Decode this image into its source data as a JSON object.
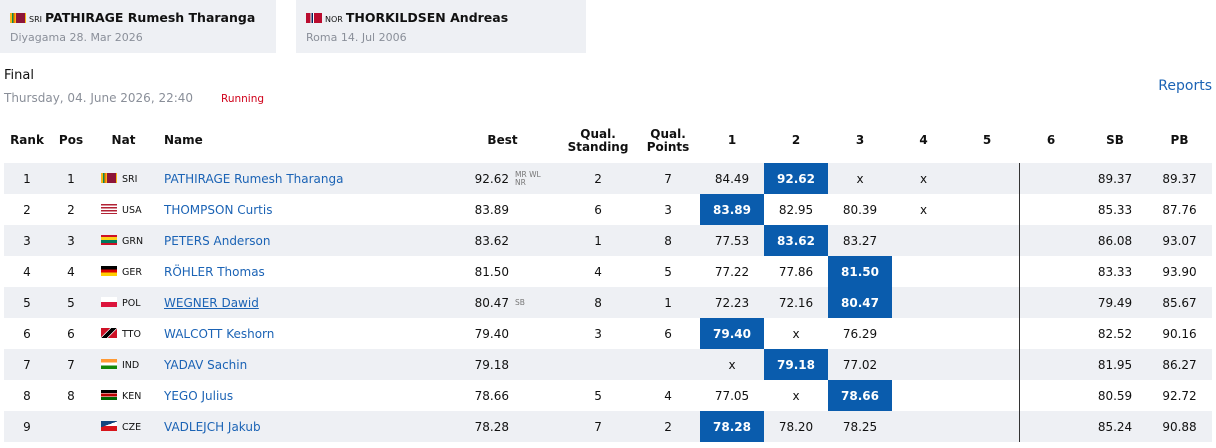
{
  "cards": [
    {
      "nat": "SRI",
      "name": "PATHIRAGE Rumesh Tharanga",
      "detail": "Diyagama 28. Mar 2026"
    },
    {
      "nat": "NOR",
      "name": "THORKILDSEN Andreas",
      "detail": "Roma 14. Jul 2006"
    }
  ],
  "header": {
    "title": "Final",
    "datetime": "Thursday, 04. June 2026, 22:40",
    "status": "Running",
    "link": "Reports"
  },
  "table": {
    "columns": [
      "Rank",
      "Pos",
      "Nat",
      "Name",
      "Best",
      "Qual. Standing",
      "Qual. Points",
      "1",
      "2",
      "3",
      "4",
      "5",
      "6",
      "SB",
      "PB"
    ],
    "rows": [
      {
        "rank": "1",
        "pos": "1",
        "nat": "SRI",
        "name": "PATHIRAGE Rumesh Tharanga",
        "best": "92.62",
        "marks": [
          "MR WL",
          "NR"
        ],
        "qual_standing": "2",
        "qual_points": "7",
        "attempts": [
          "84.49",
          "92.62",
          "x",
          "x",
          null,
          null
        ],
        "highlight": 1,
        "sb": "89.37",
        "pb": "89.37"
      },
      {
        "rank": "2",
        "pos": "2",
        "nat": "USA",
        "name": "THOMPSON Curtis",
        "best": "83.89",
        "marks": null,
        "qual_standing": "6",
        "qual_points": "3",
        "attempts": [
          "83.89",
          "82.95",
          "80.39",
          "x",
          null,
          null
        ],
        "highlight": 0,
        "sb": "85.33",
        "pb": "87.76"
      },
      {
        "rank": "3",
        "pos": "3",
        "nat": "GRN",
        "name": "PETERS Anderson",
        "best": "83.62",
        "marks": null,
        "qual_standing": "1",
        "qual_points": "8",
        "attempts": [
          "77.53",
          "83.62",
          "83.27",
          null,
          null,
          null
        ],
        "highlight": 1,
        "sb": "86.08",
        "pb": "93.07"
      },
      {
        "rank": "4",
        "pos": "4",
        "nat": "GER",
        "name": "RÖHLER Thomas",
        "best": "81.50",
        "marks": null,
        "qual_standing": "4",
        "qual_points": "5",
        "attempts": [
          "77.22",
          "77.86",
          "81.50",
          null,
          null,
          null
        ],
        "highlight": 2,
        "sb": "83.33",
        "pb": "93.90"
      },
      {
        "rank": "5",
        "pos": "5",
        "nat": "POL",
        "name": "WEGNER Dawid",
        "underlined": true,
        "best": "80.47",
        "marks": [
          "SB"
        ],
        "qual_standing": "8",
        "qual_points": "1",
        "attempts": [
          "72.23",
          "72.16",
          "80.47",
          null,
          null,
          null
        ],
        "highlight": 2,
        "sb": "79.49",
        "pb": "85.67"
      },
      {
        "rank": "6",
        "pos": "6",
        "nat": "TTO",
        "name": "WALCOTT Keshorn",
        "best": "79.40",
        "marks": null,
        "qual_standing": "3",
        "qual_points": "6",
        "attempts": [
          "79.40",
          "x",
          "76.29",
          null,
          null,
          null
        ],
        "highlight": 0,
        "sb": "82.52",
        "pb": "90.16"
      },
      {
        "rank": "7",
        "pos": "7",
        "nat": "IND",
        "name": "YADAV Sachin",
        "best": "79.18",
        "marks": null,
        "qual_standing": null,
        "qual_points": null,
        "attempts": [
          "x",
          "79.18",
          "77.02",
          null,
          null,
          null
        ],
        "highlight": 1,
        "sb": "81.95",
        "pb": "86.27"
      },
      {
        "rank": "8",
        "pos": "8",
        "nat": "KEN",
        "name": "YEGO Julius",
        "best": "78.66",
        "marks": null,
        "qual_standing": "5",
        "qual_points": "4",
        "attempts": [
          "77.05",
          "x",
          "78.66",
          null,
          null,
          null
        ],
        "highlight": 2,
        "sb": "80.59",
        "pb": "92.72"
      },
      {
        "rank": "9",
        "pos": null,
        "nat": "CZE",
        "name": "VADLEJCH Jakub",
        "best": "78.28",
        "marks": null,
        "qual_standing": "7",
        "qual_points": "2",
        "attempts": [
          "78.28",
          "78.20",
          "78.25",
          null,
          null,
          null
        ],
        "highlight": 0,
        "sb": "85.24",
        "pb": "90.88"
      }
    ]
  }
}
